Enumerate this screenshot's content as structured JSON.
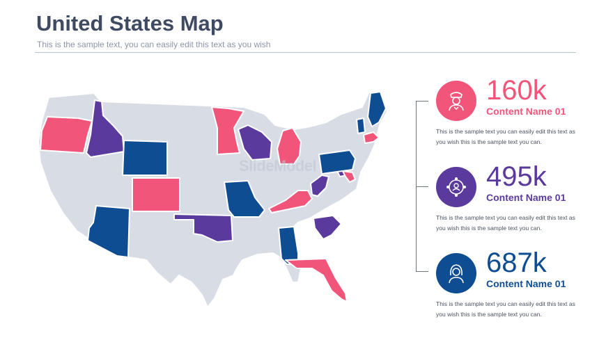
{
  "header": {
    "title": "United States Map",
    "subtitle": "This is the sample text, you can easily edit this text as you wish"
  },
  "watermark": "SlideModel",
  "colors": {
    "title": "#3f4a63",
    "base_state": "#d8dce5",
    "pink": "#f2557a",
    "purple": "#5b3a9e",
    "blue": "#0e4d92"
  },
  "items": [
    {
      "value": "160k",
      "name": "Content Name 01",
      "description": "This is the sample text you can easily edit this text as you wish this is the sample text you can.",
      "color": "#f2557a",
      "icon": "police-officer-icon"
    },
    {
      "value": "495k",
      "name": "Content Name 01",
      "description": "This is the sample text you can easily edit this text as you wish this is the sample text you can.",
      "color": "#5b3a9e",
      "icon": "network-people-icon"
    },
    {
      "value": "687k",
      "name": "Content Name 01",
      "description": "This is the sample text you can easily edit this text as you wish this is the sample text you can.",
      "color": "#0e4d92",
      "icon": "woman-avatar-icon"
    }
  ],
  "map": {
    "highlighted_states": {
      "pink": [
        "Oregon",
        "Minnesota",
        "Michigan",
        "Colorado",
        "Kentucky",
        "Florida",
        "Massachusetts",
        "Maryland"
      ],
      "purple": [
        "Idaho",
        "Wisconsin",
        "Oklahoma",
        "West Virginia",
        "South Carolina",
        "Virginia"
      ],
      "blue": [
        "Wyoming",
        "Arizona",
        "Missouri",
        "Alabama",
        "Pennsylvania",
        "Maine",
        "Vermont"
      ]
    }
  }
}
